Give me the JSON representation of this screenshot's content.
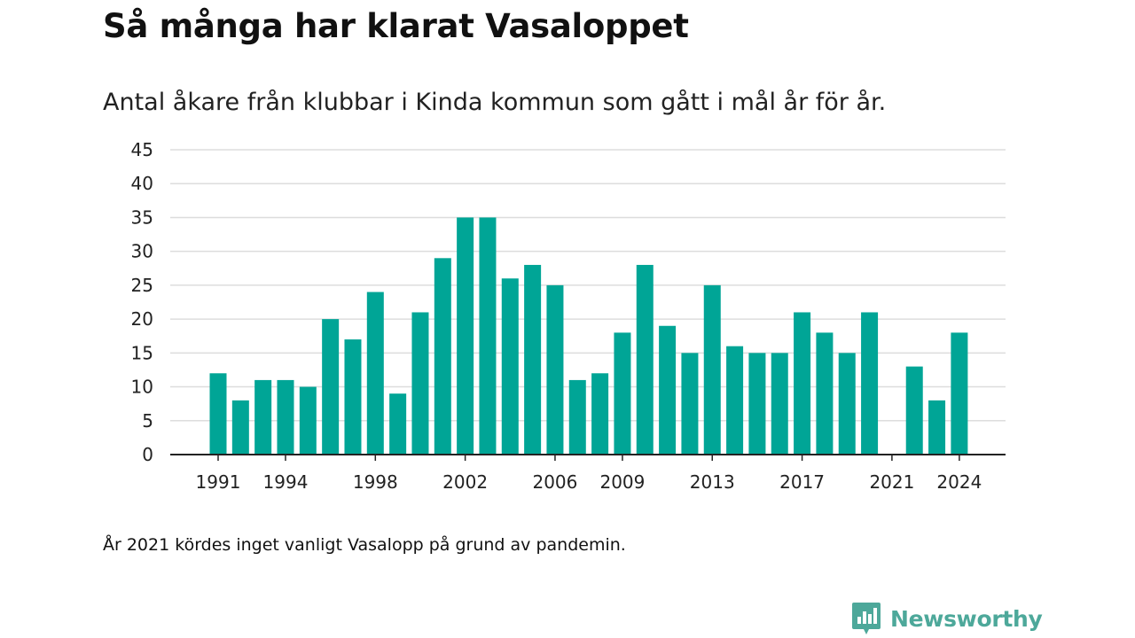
{
  "title": "Så många har klarat Vasaloppet",
  "subtitle": "Antal åkare från klubbar i Kinda kommun som gått i mål år för år.",
  "footnote": "År 2021 kördes inget vanligt Vasalopp på grund av pandemin.",
  "brand": {
    "name": "Newsworthy",
    "color": "#4da89a",
    "icon": "newsworthy-logo-icon"
  },
  "colors": {
    "bar": "#00a596",
    "grid": "#dddddd",
    "axis": "#222222"
  },
  "chart_data": {
    "type": "bar",
    "title": "Så många har klarat Vasaloppet",
    "subtitle": "Antal åkare från klubbar i Kinda kommun som gått i mål år för år.",
    "xlabel": "",
    "ylabel": "",
    "categories": [
      1991,
      1992,
      1993,
      1994,
      1995,
      1996,
      1997,
      1998,
      1999,
      2000,
      2001,
      2002,
      2003,
      2004,
      2005,
      2006,
      2007,
      2008,
      2009,
      2010,
      2011,
      2012,
      2013,
      2014,
      2015,
      2016,
      2017,
      2018,
      2019,
      2020,
      2021,
      2022,
      2023,
      2024
    ],
    "values": [
      12,
      8,
      11,
      11,
      10,
      20,
      17,
      24,
      9,
      21,
      29,
      35,
      35,
      26,
      28,
      25,
      11,
      12,
      18,
      28,
      19,
      15,
      25,
      16,
      15,
      15,
      21,
      18,
      15,
      21,
      null,
      13,
      8,
      18
    ],
    "x_tick_labels": [
      "1991",
      "1994",
      "1998",
      "2002",
      "2006",
      "2009",
      "2013",
      "2017",
      "2021",
      "2024"
    ],
    "y_ticks": [
      0,
      5,
      10,
      15,
      20,
      25,
      30,
      35,
      40,
      45
    ],
    "ylim": [
      0,
      45
    ],
    "grid": true,
    "legend": "none"
  }
}
